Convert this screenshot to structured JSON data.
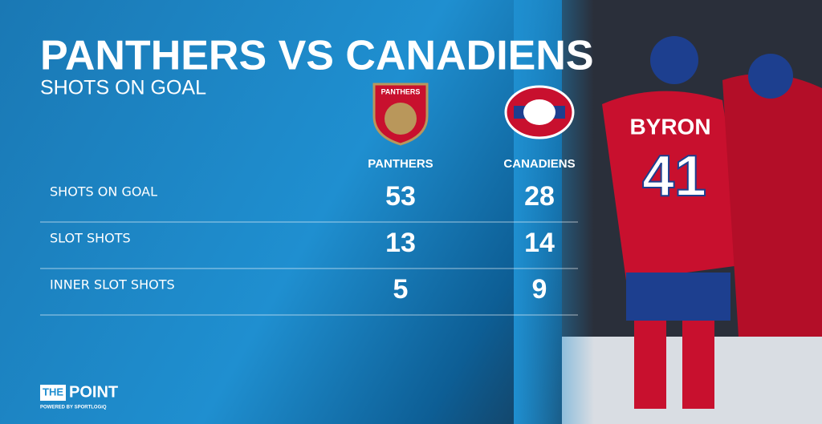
{
  "header": {
    "title": "PANTHERS VS CANADIENS",
    "subtitle": "SHOTS ON GOAL"
  },
  "logos": {
    "panthers": "PANTHERS"
  },
  "table": {
    "columns": [
      "PANTHERS",
      "CANADIENS"
    ],
    "rows": [
      [
        "SHOTS ON GOAL",
        53,
        28
      ],
      [
        "SLOT SHOTS",
        13,
        14
      ],
      [
        "INNER SLOT SHOTS",
        5,
        9
      ]
    ]
  },
  "photo": {
    "jersey_name": "BYRON",
    "jersey_number": "41"
  },
  "footer": {
    "brand_left": "THE",
    "brand_right": "POINT",
    "powered": "POWERED BY SPORTLOGiQ"
  }
}
